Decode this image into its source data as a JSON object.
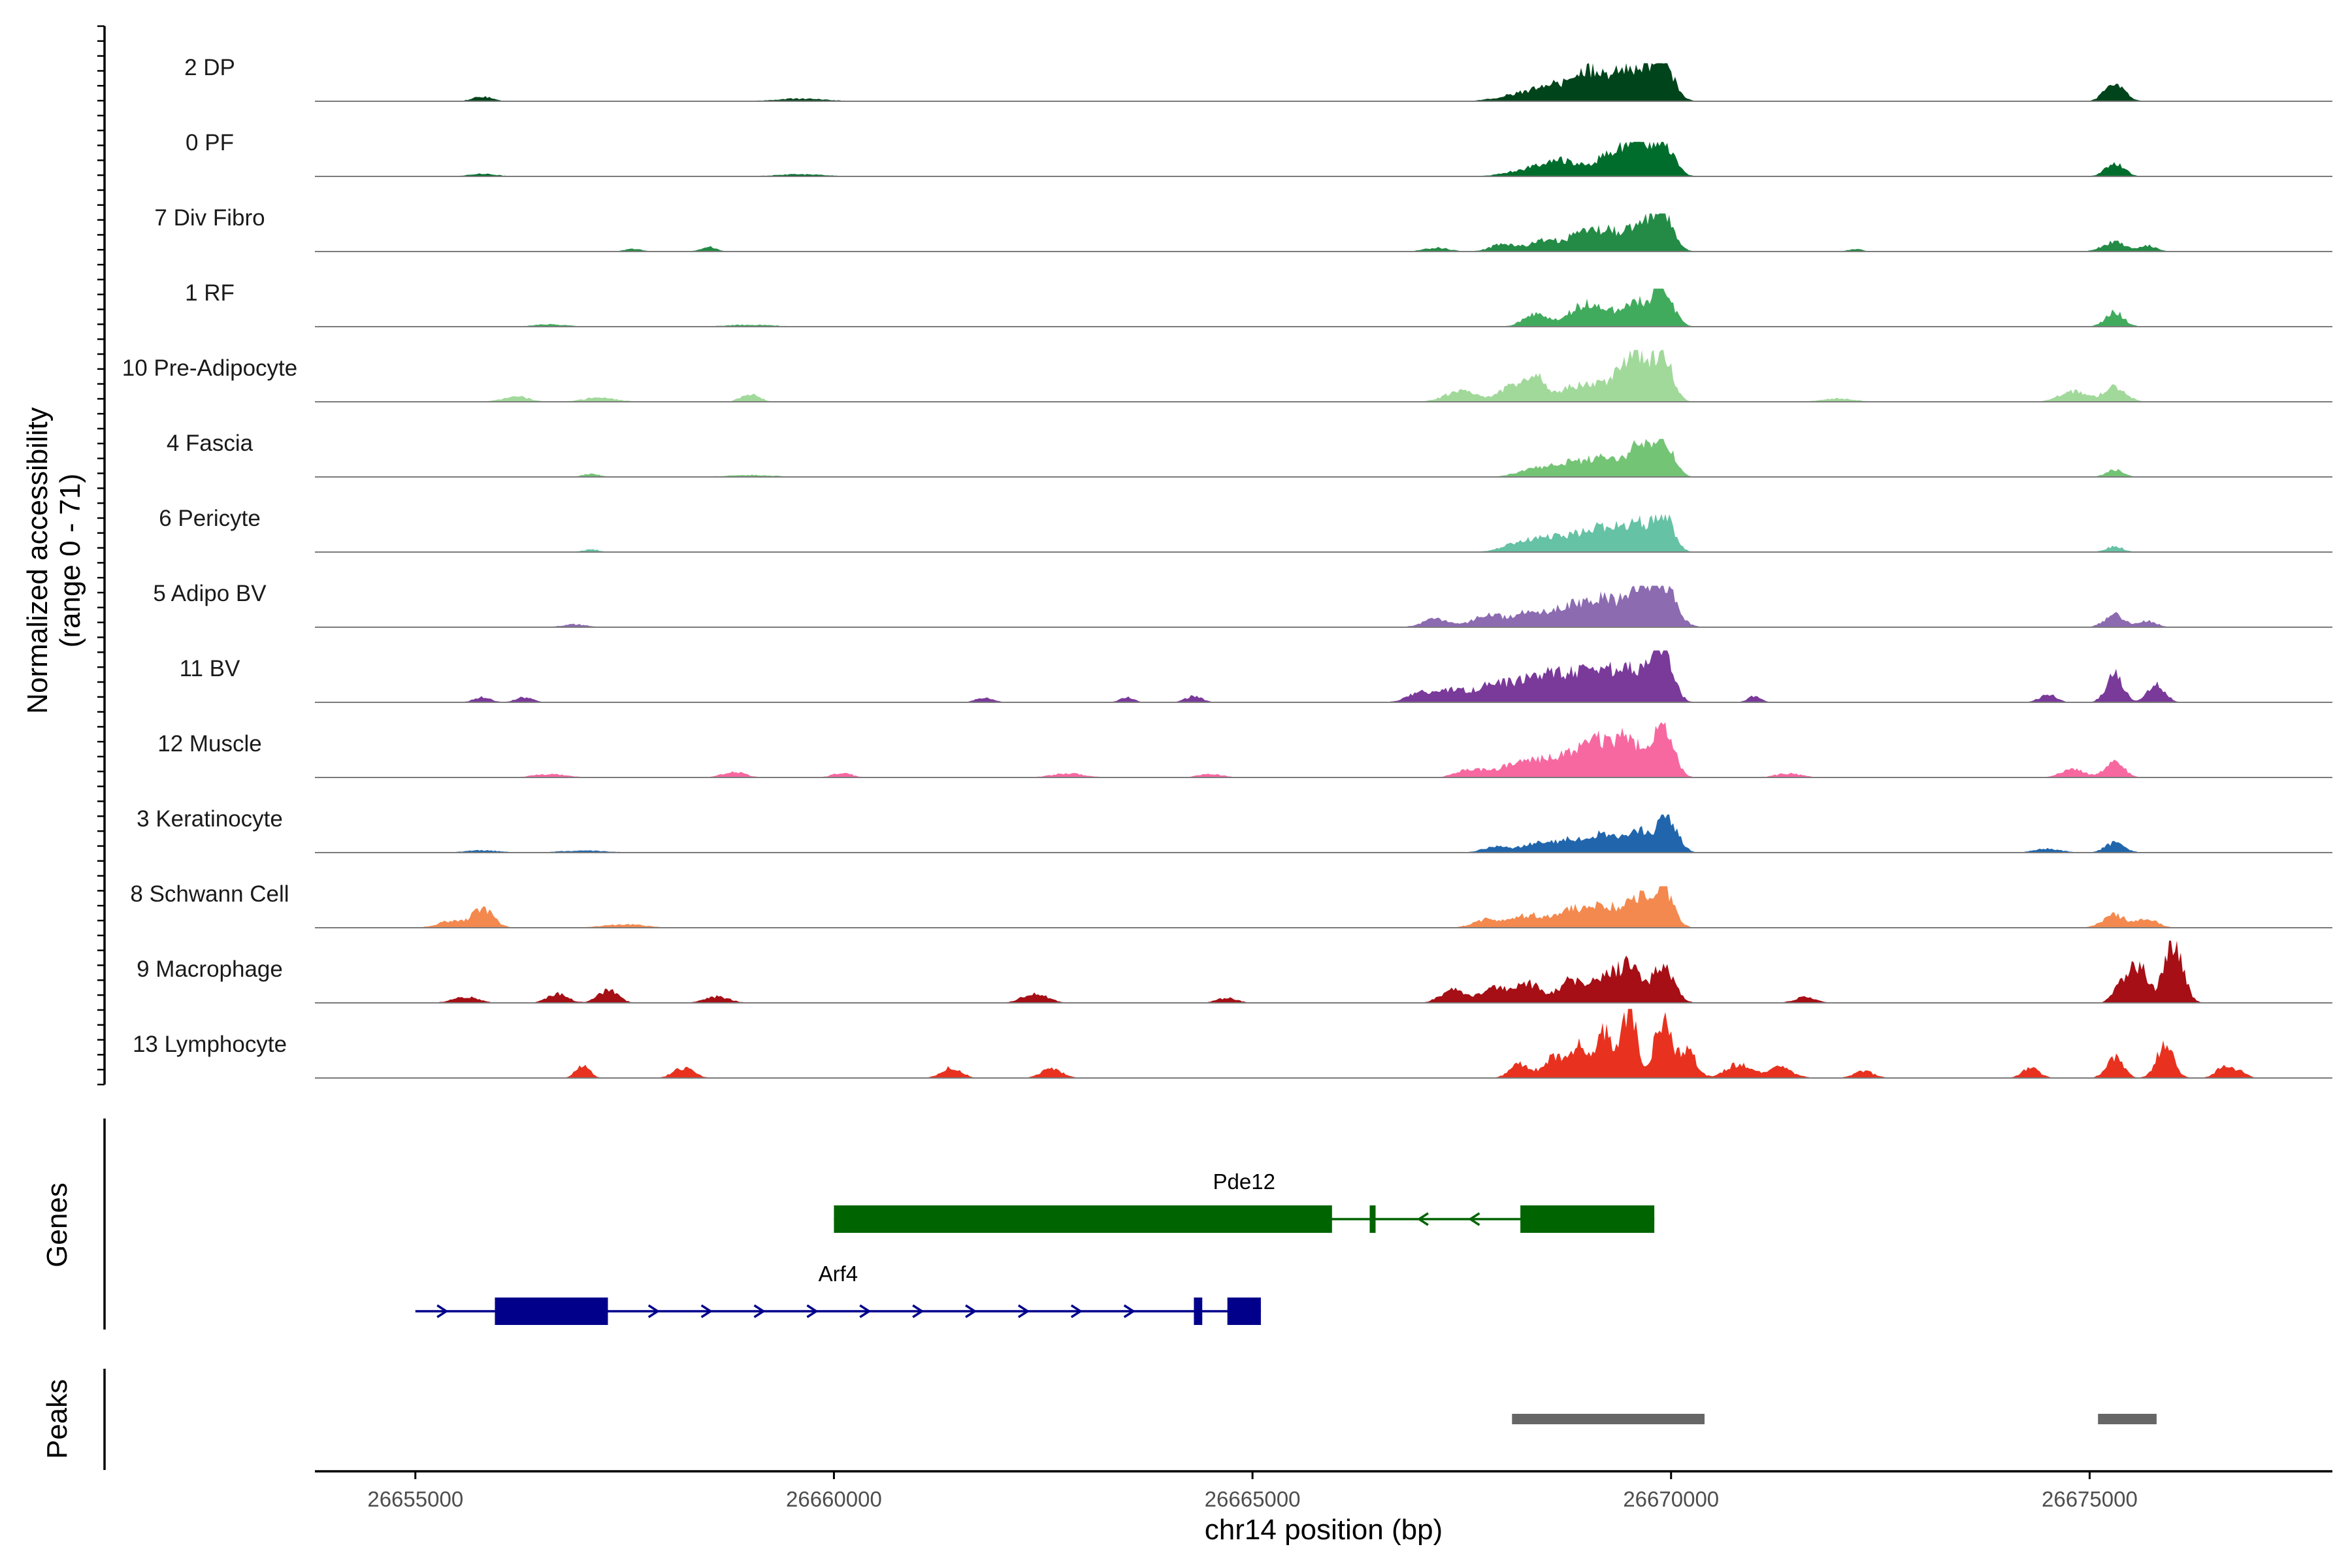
{
  "chart_data": {
    "type": "area",
    "title": "",
    "ylabel": "Normalized accessibility",
    "ylabel_range": "(range 0 - 71)",
    "ylim": [
      0,
      71
    ],
    "xlabel": "chr14 position (bp)",
    "xlim": [
      26653800,
      26677900
    ],
    "x_ticks": [
      26655000,
      26660000,
      26665000,
      26670000,
      26675000
    ],
    "x_tick_labels": [
      "26655000",
      "26660000",
      "26665000",
      "26670000",
      "26675000"
    ],
    "tracks": [
      {
        "name": "2 DP",
        "color": "#00441b",
        "scale": 0.55,
        "peaks": [
          [
            26669900,
            0.95,
            130
          ],
          [
            26669600,
            0.7,
            200
          ],
          [
            26669300,
            0.45,
            180
          ],
          [
            26669000,
            0.55,
            140
          ],
          [
            26668700,
            0.35,
            220
          ],
          [
            26668300,
            0.22,
            300
          ],
          [
            26675300,
            0.45,
            120
          ],
          [
            26655800,
            0.12,
            120
          ],
          [
            26659600,
            0.07,
            300
          ]
        ]
      },
      {
        "name": "0 PF",
        "color": "#006d2c",
        "scale": 0.5,
        "peaks": [
          [
            26669900,
            1.0,
            130
          ],
          [
            26669600,
            0.85,
            130
          ],
          [
            26669300,
            0.65,
            200
          ],
          [
            26668700,
            0.4,
            200
          ],
          [
            26668300,
            0.2,
            250
          ],
          [
            26675300,
            0.4,
            110
          ],
          [
            26655800,
            0.08,
            160
          ],
          [
            26659600,
            0.06,
            300
          ]
        ]
      },
      {
        "name": "7 Div Fibro",
        "color": "#238b45",
        "scale": 0.55,
        "peaks": [
          [
            26669900,
            1.0,
            120
          ],
          [
            26669600,
            0.7,
            170
          ],
          [
            26669200,
            0.5,
            150
          ],
          [
            26668900,
            0.4,
            140
          ],
          [
            26668500,
            0.3,
            180
          ],
          [
            26668000,
            0.2,
            150
          ],
          [
            26667200,
            0.1,
            150
          ],
          [
            26675300,
            0.25,
            140
          ],
          [
            26675700,
            0.15,
            100
          ],
          [
            26658500,
            0.12,
            100
          ],
          [
            26657600,
            0.07,
            100
          ],
          [
            26672200,
            0.07,
            80
          ]
        ]
      },
      {
        "name": "1 RF",
        "color": "#41ab5d",
        "scale": 0.55,
        "peaks": [
          [
            26669900,
            1.0,
            120
          ],
          [
            26669600,
            0.6,
            120
          ],
          [
            26669200,
            0.45,
            200
          ],
          [
            26668900,
            0.4,
            150
          ],
          [
            26668400,
            0.35,
            150
          ],
          [
            26675300,
            0.38,
            110
          ],
          [
            26656600,
            0.06,
            200
          ],
          [
            26659000,
            0.05,
            300
          ]
        ]
      },
      {
        "name": "10 Pre-Adipocyte",
        "color": "#a1d99b",
        "scale": 0.75,
        "peaks": [
          [
            26669900,
            1.0,
            110
          ],
          [
            26669600,
            0.85,
            120
          ],
          [
            26669400,
            0.45,
            120
          ],
          [
            26669100,
            0.3,
            150
          ],
          [
            26668800,
            0.25,
            150
          ],
          [
            26668400,
            0.45,
            120
          ],
          [
            26668100,
            0.3,
            140
          ],
          [
            26667500,
            0.2,
            200
          ],
          [
            26675300,
            0.3,
            130
          ],
          [
            26674800,
            0.2,
            160
          ],
          [
            26659000,
            0.15,
            110
          ],
          [
            26656200,
            0.1,
            160
          ],
          [
            26657200,
            0.08,
            200
          ],
          [
            26672000,
            0.06,
            200
          ]
        ]
      },
      {
        "name": "4 Fascia",
        "color": "#74c476",
        "scale": 0.55,
        "peaks": [
          [
            26669900,
            1.0,
            120
          ],
          [
            26669600,
            0.8,
            120
          ],
          [
            26669200,
            0.45,
            200
          ],
          [
            26668800,
            0.3,
            200
          ],
          [
            26668400,
            0.2,
            220
          ],
          [
            26675300,
            0.2,
            100
          ],
          [
            26657100,
            0.08,
            100
          ],
          [
            26659000,
            0.05,
            300
          ]
        ]
      },
      {
        "name": "6 Pericyte",
        "color": "#66c2a4",
        "scale": 0.55,
        "peaks": [
          [
            26669900,
            1.0,
            120
          ],
          [
            26669600,
            0.7,
            120
          ],
          [
            26669300,
            0.55,
            160
          ],
          [
            26669000,
            0.45,
            180
          ],
          [
            26668600,
            0.35,
            200
          ],
          [
            26668200,
            0.25,
            200
          ],
          [
            26675300,
            0.15,
            100
          ],
          [
            26657100,
            0.07,
            100
          ]
        ]
      },
      {
        "name": "5 Adipo BV",
        "color": "#8c6bb1",
        "scale": 0.6,
        "peaks": [
          [
            26669900,
            1.0,
            150
          ],
          [
            26669600,
            0.75,
            160
          ],
          [
            26669200,
            0.6,
            180
          ],
          [
            26668800,
            0.5,
            200
          ],
          [
            26668300,
            0.35,
            200
          ],
          [
            26667800,
            0.3,
            160
          ],
          [
            26667200,
            0.2,
            160
          ],
          [
            26675300,
            0.3,
            120
          ],
          [
            26675700,
            0.15,
            100
          ],
          [
            26656900,
            0.07,
            140
          ]
        ]
      },
      {
        "name": "11 BV",
        "color": "#7a3a9a",
        "scale": 0.75,
        "peaks": [
          [
            26669900,
            1.0,
            120
          ],
          [
            26669600,
            0.55,
            150
          ],
          [
            26669300,
            0.5,
            150
          ],
          [
            26669000,
            0.48,
            150
          ],
          [
            26668700,
            0.45,
            150
          ],
          [
            26668400,
            0.45,
            150
          ],
          [
            26668100,
            0.3,
            150
          ],
          [
            26667800,
            0.3,
            150
          ],
          [
            26667400,
            0.25,
            150
          ],
          [
            26667000,
            0.2,
            150
          ],
          [
            26675300,
            0.55,
            100
          ],
          [
            26675800,
            0.35,
            100
          ],
          [
            26674500,
            0.15,
            100
          ],
          [
            26664300,
            0.12,
            100
          ],
          [
            26655800,
            0.1,
            100
          ],
          [
            26656300,
            0.1,
            100
          ],
          [
            26661800,
            0.1,
            100
          ],
          [
            26663500,
            0.1,
            80
          ],
          [
            26671000,
            0.12,
            80
          ]
        ]
      },
      {
        "name": "12 Muscle",
        "color": "#f768a1",
        "scale": 0.8,
        "peaks": [
          [
            26669900,
            1.0,
            120
          ],
          [
            26669500,
            0.7,
            130
          ],
          [
            26669200,
            0.55,
            150
          ],
          [
            26668900,
            0.4,
            180
          ],
          [
            26668500,
            0.3,
            200
          ],
          [
            26668100,
            0.2,
            200
          ],
          [
            26667600,
            0.15,
            160
          ],
          [
            26675300,
            0.3,
            110
          ],
          [
            26674800,
            0.15,
            140
          ],
          [
            26658800,
            0.1,
            140
          ],
          [
            26656600,
            0.06,
            200
          ],
          [
            26660100,
            0.08,
            120
          ],
          [
            26662800,
            0.07,
            200
          ],
          [
            26664500,
            0.06,
            150
          ],
          [
            26671400,
            0.07,
            160
          ]
        ]
      },
      {
        "name": "3 Keratinocyte",
        "color": "#2166ac",
        "scale": 0.55,
        "peaks": [
          [
            26669950,
            1.0,
            120
          ],
          [
            26669600,
            0.55,
            130
          ],
          [
            26669200,
            0.45,
            180
          ],
          [
            26668800,
            0.3,
            180
          ],
          [
            26668400,
            0.25,
            180
          ],
          [
            26667900,
            0.15,
            150
          ],
          [
            26675300,
            0.25,
            120
          ],
          [
            26674500,
            0.1,
            160
          ],
          [
            26655800,
            0.06,
            200
          ],
          [
            26657000,
            0.05,
            300
          ]
        ]
      },
      {
        "name": "8 Schwann Cell",
        "color": "#f4894f",
        "scale": 0.6,
        "peaks": [
          [
            26669900,
            1.0,
            120
          ],
          [
            26669600,
            0.7,
            140
          ],
          [
            26669200,
            0.5,
            180
          ],
          [
            26668800,
            0.4,
            180
          ],
          [
            26668300,
            0.3,
            180
          ],
          [
            26667800,
            0.2,
            160
          ],
          [
            26675300,
            0.3,
            140
          ],
          [
            26675700,
            0.2,
            120
          ],
          [
            26655800,
            0.45,
            130
          ],
          [
            26655400,
            0.15,
            150
          ],
          [
            26657500,
            0.08,
            250
          ]
        ]
      },
      {
        "name": "9 Macrophage",
        "color": "#a50f15",
        "scale": 0.9,
        "peaks": [
          [
            26676000,
            1.0,
            110
          ],
          [
            26675600,
            0.55,
            100
          ],
          [
            26675400,
            0.35,
            100
          ],
          [
            26669900,
            0.6,
            130
          ],
          [
            26669500,
            0.55,
            130
          ],
          [
            26669200,
            0.4,
            150
          ],
          [
            26668800,
            0.35,
            150
          ],
          [
            26668300,
            0.3,
            150
          ],
          [
            26667900,
            0.25,
            150
          ],
          [
            26667400,
            0.2,
            150
          ],
          [
            26657300,
            0.2,
            120
          ],
          [
            26656700,
            0.15,
            120
          ],
          [
            26662400,
            0.15,
            150
          ],
          [
            26655600,
            0.1,
            150
          ],
          [
            26658600,
            0.1,
            150
          ],
          [
            26664700,
            0.08,
            120
          ],
          [
            26671600,
            0.1,
            120
          ]
        ]
      },
      {
        "name": "13 Lymphocyte",
        "color": "#e8321f",
        "scale": 1.0,
        "peaks": [
          [
            26669500,
            1.0,
            90
          ],
          [
            26669900,
            0.85,
            100
          ],
          [
            26669200,
            0.7,
            100
          ],
          [
            26670200,
            0.4,
            100
          ],
          [
            26668900,
            0.45,
            100
          ],
          [
            26668600,
            0.3,
            120
          ],
          [
            26668200,
            0.2,
            120
          ],
          [
            26670800,
            0.2,
            150
          ],
          [
            26671300,
            0.15,
            150
          ],
          [
            26675300,
            0.3,
            100
          ],
          [
            26675900,
            0.5,
            100
          ],
          [
            26676600,
            0.15,
            100
          ],
          [
            26674300,
            0.15,
            100
          ],
          [
            26657000,
            0.2,
            80
          ],
          [
            26658200,
            0.15,
            120
          ],
          [
            26661400,
            0.15,
            120
          ],
          [
            26662600,
            0.15,
            120
          ],
          [
            26672300,
            0.1,
            120
          ],
          [
            26676800,
            0.1,
            80
          ]
        ]
      }
    ],
    "genes_label": "Genes",
    "genes": [
      {
        "name": "Pde12",
        "color": "#006400",
        "strand": "-",
        "start": 26660000,
        "end": 26669800,
        "exons": [
          [
            26660000,
            26665950
          ],
          [
            26666400,
            26666450
          ],
          [
            26668200,
            26669800
          ]
        ]
      },
      {
        "name": "Arf4",
        "color": "#00008b",
        "strand": "+",
        "start": 26655000,
        "end": 26665100,
        "exons": [
          [
            26655950,
            26657300
          ],
          [
            26664300,
            26664400
          ],
          [
            26664700,
            26665100
          ]
        ]
      }
    ],
    "peaks_label": "Peaks",
    "peak_regions": [
      [
        26668100,
        26670400
      ],
      [
        26675100,
        26675800
      ]
    ],
    "peak_color": "#666666"
  }
}
